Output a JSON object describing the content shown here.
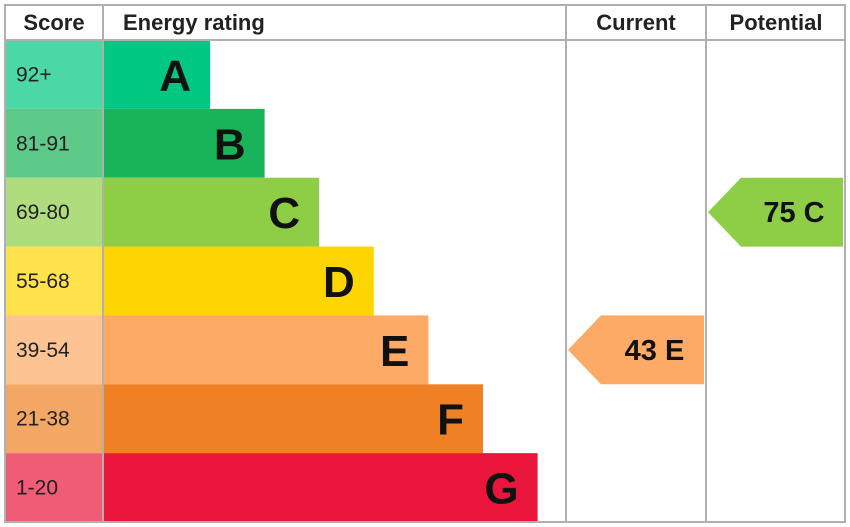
{
  "headers": {
    "score": "Score",
    "energy_rating": "Energy rating",
    "current": "Current",
    "potential": "Potential"
  },
  "chart_data": {
    "type": "bar",
    "title": "",
    "bands": [
      {
        "letter": "A",
        "range": "92+",
        "min": 92,
        "max": null,
        "color": "#00c781",
        "light": "#4cd8a6"
      },
      {
        "letter": "B",
        "range": "81-91",
        "min": 81,
        "max": 91,
        "color": "#19b459",
        "light": "#5eca8a"
      },
      {
        "letter": "C",
        "range": "69-80",
        "min": 69,
        "max": 80,
        "color": "#8dce46",
        "light": "#afdd7e"
      },
      {
        "letter": "D",
        "range": "55-68",
        "min": 55,
        "max": 68,
        "color": "#ffd500",
        "light": "#ffe24c"
      },
      {
        "letter": "E",
        "range": "39-54",
        "min": 39,
        "max": 54,
        "color": "#fcaa65",
        "light": "#fdc393"
      },
      {
        "letter": "F",
        "range": "21-38",
        "min": 21,
        "max": 38,
        "color": "#ef8023",
        "light": "#f4a664"
      },
      {
        "letter": "G",
        "range": "1-20",
        "min": 1,
        "max": 20,
        "color": "#e9153b",
        "light": "#f05b76"
      }
    ],
    "current": {
      "score": 43,
      "band": "E",
      "label": "43 E",
      "color": "#fcaa65"
    },
    "potential": {
      "score": 75,
      "band": "C",
      "label": "75 C",
      "color": "#8dce46"
    },
    "border_color": "#b0b0b0"
  }
}
